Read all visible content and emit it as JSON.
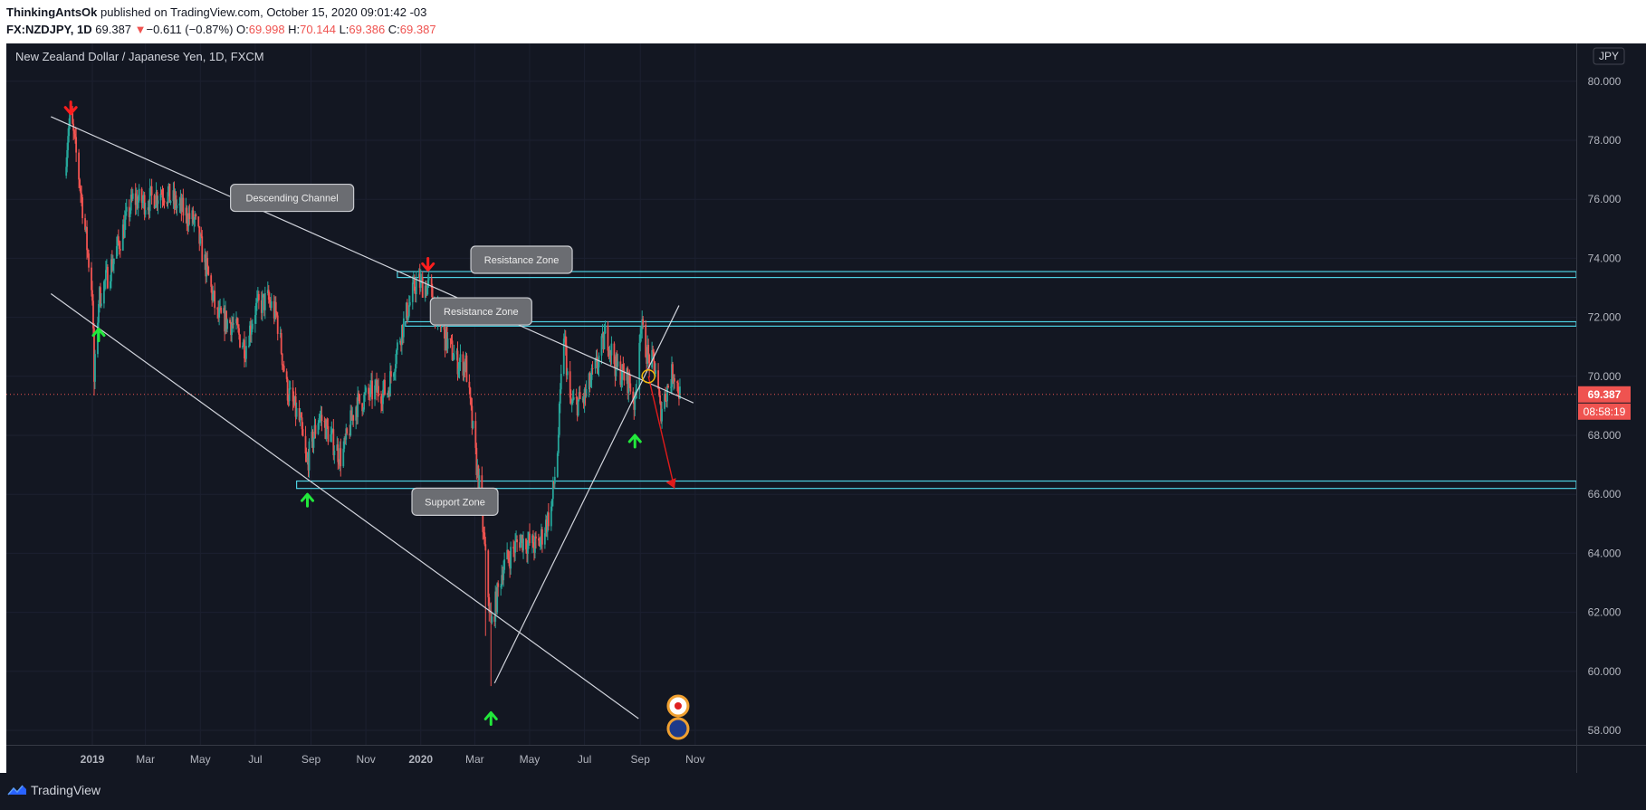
{
  "header": {
    "author": "ThinkingAntsOk",
    "published_text": " published on TradingView.com, October 15, 2020 09:01:42 -03",
    "symbol": "FX:NZDJPY, 1D",
    "last": "69.387",
    "change": "−0.611 (−0.87%)",
    "o_label": "O:",
    "o_value": "69.998",
    "h_label": "H:",
    "h_value": "70.144",
    "l_label": "L:",
    "l_value": "69.386",
    "c_label": "C:",
    "c_value": "69.387"
  },
  "chart_title": "New Zealand Dollar / Japanese Yen, 1D, FXCM",
  "currency_badge": "JPY",
  "price_tag": "69.387",
  "countdown_tag": "08:58:19",
  "footer": {
    "brand": "TradingView"
  },
  "colors": {
    "background": "#131722",
    "up": "#26a69a",
    "down": "#ef5350",
    "zone": "#4dd0e1",
    "trendline": "#d1d4dc",
    "arrow_down": "#ff1e1e",
    "arrow_up": "#22e83b"
  },
  "annotations": [
    {
      "text": "Descending Channel"
    },
    {
      "text": "Resistance Zone"
    },
    {
      "text": "Resistance Zone"
    },
    {
      "text": "Support Zone"
    }
  ],
  "chart_data": {
    "type": "candlestick",
    "title": "New Zealand Dollar / Japanese Yen, 1D, FXCM",
    "series_name": "NZDJPY",
    "ylim": [
      57.5,
      80.8
    ],
    "y_ticks": [
      "58.000",
      "60.000",
      "62.000",
      "64.000",
      "66.000",
      "68.000",
      "70.000",
      "72.000",
      "74.000",
      "76.000",
      "78.000",
      "80.000"
    ],
    "x_ticks": [
      "2019",
      "Mar",
      "May",
      "Jul",
      "Sep",
      "Nov",
      "2020",
      "Mar",
      "May",
      "Jul",
      "Sep",
      "Nov"
    ],
    "last_price": 69.387,
    "price_path": [
      [
        "2018-12-01",
        76.8
      ],
      [
        "2018-12-05",
        78.3
      ],
      [
        "2018-12-08",
        78.8
      ],
      [
        "2018-12-15",
        77.3
      ],
      [
        "2018-12-22",
        75.5
      ],
      [
        "2019-01-01",
        72.8
      ],
      [
        "2019-01-03",
        69.8
      ],
      [
        "2019-01-08",
        72.6
      ],
      [
        "2019-01-25",
        74.0
      ],
      [
        "2019-02-15",
        76.0
      ],
      [
        "2019-03-01",
        75.9
      ],
      [
        "2019-03-20",
        76.3
      ],
      [
        "2019-04-05",
        75.8
      ],
      [
        "2019-04-25",
        75.2
      ],
      [
        "2019-05-08",
        73.6
      ],
      [
        "2019-05-20",
        72.0
      ],
      [
        "2019-06-05",
        71.8
      ],
      [
        "2019-06-20",
        71.0
      ],
      [
        "2019-07-01",
        72.3
      ],
      [
        "2019-07-15",
        72.6
      ],
      [
        "2019-07-25",
        72.0
      ],
      [
        "2019-08-05",
        69.6
      ],
      [
        "2019-08-20",
        68.4
      ],
      [
        "2019-08-27",
        67.0
      ],
      [
        "2019-09-10",
        68.7
      ],
      [
        "2019-09-25",
        67.8
      ],
      [
        "2019-10-05",
        67.2
      ],
      [
        "2019-10-20",
        69.0
      ],
      [
        "2019-11-10",
        69.5
      ],
      [
        "2019-11-25",
        69.5
      ],
      [
        "2019-12-10",
        71.5
      ],
      [
        "2019-12-27",
        73.2
      ],
      [
        "2020-01-10",
        73.0
      ],
      [
        "2020-01-25",
        71.5
      ],
      [
        "2020-02-10",
        70.5
      ],
      [
        "2020-02-20",
        70.4
      ],
      [
        "2020-03-01",
        67.5
      ],
      [
        "2020-03-07",
        66.0
      ],
      [
        "2020-03-19",
        61.5
      ],
      [
        "2020-04-01",
        63.5
      ],
      [
        "2020-04-20",
        64.5
      ],
      [
        "2020-05-10",
        64.2
      ],
      [
        "2020-05-25",
        65.5
      ],
      [
        "2020-06-01",
        67.5
      ],
      [
        "2020-06-08",
        71.5
      ],
      [
        "2020-06-15",
        69.0
      ],
      [
        "2020-06-30",
        69.2
      ],
      [
        "2020-07-15",
        70.4
      ],
      [
        "2020-07-25",
        71.5
      ],
      [
        "2020-08-05",
        70.3
      ],
      [
        "2020-08-20",
        69.8
      ],
      [
        "2020-08-26",
        69.0
      ],
      [
        "2020-09-01",
        71.8
      ],
      [
        "2020-09-10",
        70.6
      ],
      [
        "2020-09-18",
        70.3
      ],
      [
        "2020-09-23",
        68.8
      ],
      [
        "2020-10-01",
        69.6
      ],
      [
        "2020-10-08",
        70.2
      ],
      [
        "2020-10-15",
        69.387
      ]
    ],
    "horizontal_zones": [
      {
        "name": "Resistance Zone",
        "y_low": 73.35,
        "y_high": 73.55
      },
      {
        "name": "Resistance Zone",
        "y_low": 71.7,
        "y_high": 71.85
      },
      {
        "name": "Support Zone",
        "y_low": 66.2,
        "y_high": 66.45
      }
    ]
  }
}
